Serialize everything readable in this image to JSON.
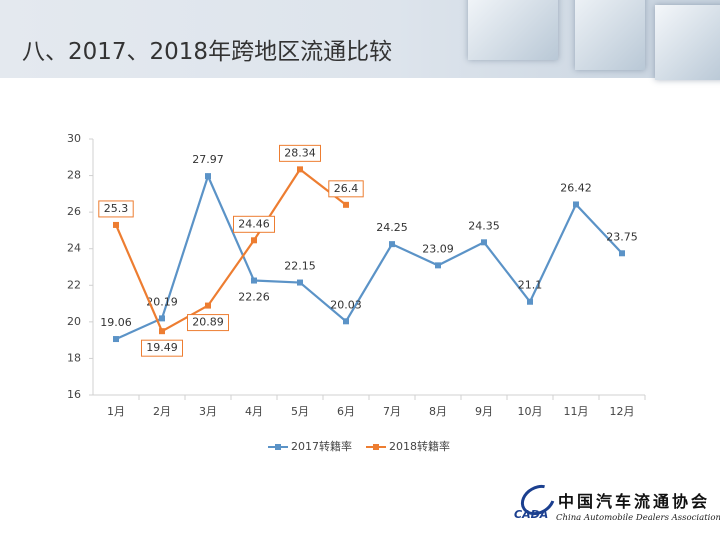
{
  "header": {
    "title": "八、2017、2018年跨地区流通比较"
  },
  "chart_data": {
    "type": "line",
    "categories": [
      "1月",
      "2月",
      "3月",
      "4月",
      "5月",
      "6月",
      "7月",
      "8月",
      "9月",
      "10月",
      "11月",
      "12月"
    ],
    "series": [
      {
        "name": "2017转籍率",
        "color": "#5b93c7",
        "values": [
          19.06,
          20.19,
          27.97,
          22.26,
          22.15,
          20.03,
          24.25,
          23.09,
          24.35,
          21.1,
          26.42,
          23.75
        ]
      },
      {
        "name": "2018转籍率",
        "color": "#ed7d31",
        "values": [
          25.3,
          19.49,
          20.89,
          24.46,
          28.34,
          26.4,
          null,
          null,
          null,
          null,
          null,
          null
        ]
      }
    ],
    "ylim": [
      16,
      30
    ],
    "yticks": [
      16,
      18,
      20,
      22,
      24,
      26,
      28,
      30
    ],
    "grid": false,
    "legend": "bottom"
  },
  "logo": {
    "name": "中国汽车流通协会",
    "english": "China Automobile Dealers Association",
    "mark": "CADA"
  }
}
